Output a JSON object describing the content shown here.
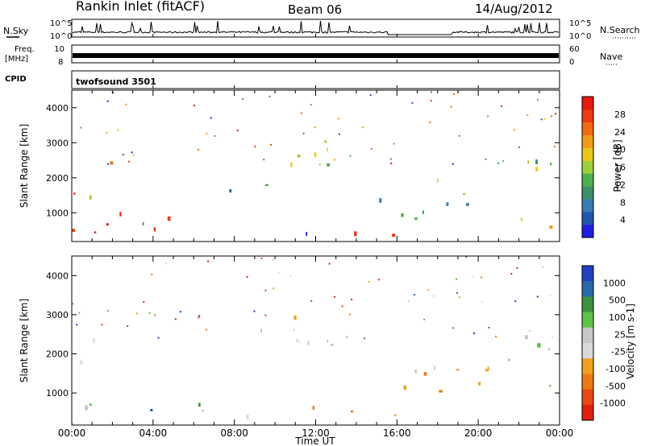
{
  "header": {
    "station": "Rankin Inlet (fitACF)",
    "beam": "Beam 06",
    "date": "14/Aug/2012"
  },
  "side_labels": {
    "nsky": "N.Sky",
    "freq_1": "Freq.",
    "freq_2": "[MHz]",
    "cpid": "CPID",
    "nsearch": "N.Search",
    "nave": "Nave"
  },
  "small_panels": {
    "nsky_ticks": [
      "10^5",
      "10^0"
    ],
    "nsearch_ticks": [
      "10^5",
      "10^0"
    ],
    "freq_ticks": [
      "10",
      "8"
    ],
    "nave_ticks": [
      "60",
      "0"
    ],
    "cpid_text": "twofsound 3501"
  },
  "colors": {
    "power": [
      "#1f1fdc",
      "#2255b0",
      "#3a7ab0",
      "#3f8f6a",
      "#50b050",
      "#9ccf3c",
      "#e8c81e",
      "#f29a1a",
      "#f06a14",
      "#ec3a12",
      "#e41a10"
    ],
    "velocity": [
      "#2040c0",
      "#2a6aa8",
      "#3f8f3f",
      "#5fc04a",
      "#c8c8c8",
      "#d9d9d9",
      "#f0a020",
      "#ec7a14",
      "#e64a12",
      "#dd2010"
    ]
  },
  "chart_data": [
    {
      "type": "heatmap",
      "name": "Power",
      "xlabel": "",
      "ylabel": "Slant Range [km]",
      "xlim": [
        0,
        24
      ],
      "ylim": [
        180,
        4500
      ],
      "yticks": [
        "1000",
        "2000",
        "3000",
        "4000"
      ],
      "colorbar_label": "Power [dB]",
      "colorbar_ticks": [
        "4",
        "8",
        "12",
        "16",
        "20",
        "24",
        "28"
      ],
      "colorbar_range": [
        0,
        32
      ]
    },
    {
      "type": "heatmap",
      "name": "Velocity",
      "xlabel": "Time UT",
      "ylabel": "Slant Range [km]",
      "xlim": [
        0,
        24
      ],
      "ylim": [
        180,
        4500
      ],
      "xticks": [
        "00:00",
        "04:00",
        "08:00",
        "12:00",
        "16:00",
        "20:00",
        "00:00"
      ],
      "yticks": [
        "1000",
        "2000",
        "3000",
        "4000"
      ],
      "colorbar_label": "Velocity [m s-1]",
      "colorbar_ticks": [
        "1000",
        "500",
        "100",
        "25",
        "-25",
        "-100",
        "-500",
        "-1000"
      ]
    }
  ]
}
